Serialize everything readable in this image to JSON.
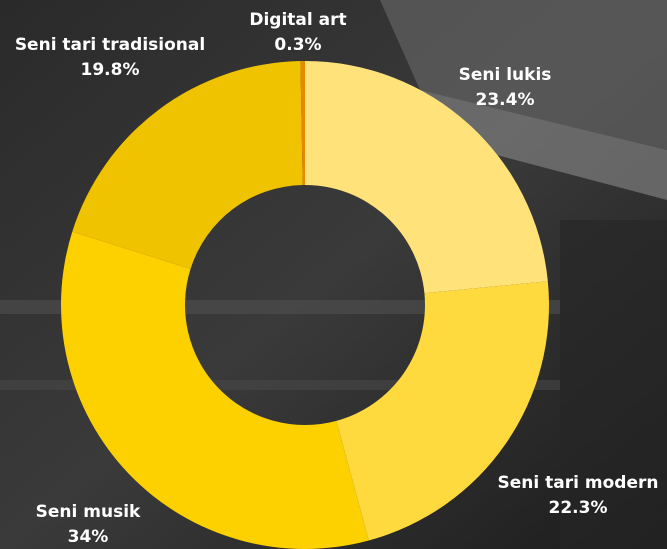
{
  "chart_data": {
    "type": "donut",
    "categories": [
      "Seni lukis",
      "Seni tari modern",
      "Seni musik",
      "Seni tari tradisional",
      "Digital art"
    ],
    "values": [
      23.4,
      22.3,
      34,
      19.8,
      0.3
    ],
    "value_labels": [
      "23.4%",
      "22.3%",
      "34%",
      "19.8%",
      "0.3%"
    ],
    "colors": [
      "#ffe27a",
      "#ffda3f",
      "#fdd000",
      "#f0c300",
      "#e38a00"
    ]
  }
}
